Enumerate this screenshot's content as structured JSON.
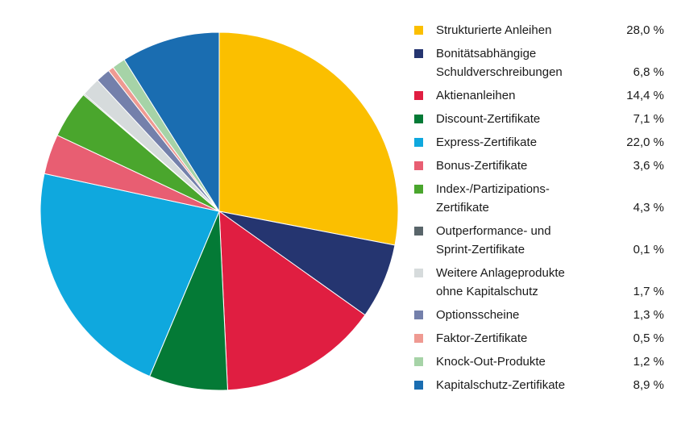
{
  "chart_data": {
    "type": "pie",
    "title": "",
    "start_angle_deg": 0,
    "direction": "clockwise",
    "slices": [
      {
        "label": "Strukturierte Anleihen",
        "label_lines": [
          "Strukturierte Anleihen"
        ],
        "value": 28.0,
        "display": "28,0 %",
        "color": "#fbbf00"
      },
      {
        "label": "Bonitätsabhängige Schuldverschreibungen",
        "label_lines": [
          "Bonitätsabhängige",
          "Schuldverschreibungen"
        ],
        "value": 6.8,
        "display": "6,8 %",
        "color": "#253570"
      },
      {
        "label": "Aktienanleihen",
        "label_lines": [
          "Aktienanleihen"
        ],
        "value": 14.4,
        "display": "14,4 %",
        "color": "#e01e41"
      },
      {
        "label": "Discount-Zertifikate",
        "label_lines": [
          "Discount-Zertifikate"
        ],
        "value": 7.1,
        "display": "7,1 %",
        "color": "#047a36"
      },
      {
        "label": "Express-Zertifikate",
        "label_lines": [
          "Express-Zertifikate"
        ],
        "value": 22.0,
        "display": "22,0 %",
        "color": "#0fa8de"
      },
      {
        "label": "Bonus-Zertifikate",
        "label_lines": [
          "Bonus-Zertifikate"
        ],
        "value": 3.6,
        "display": "3,6 %",
        "color": "#e85e72"
      },
      {
        "label": "Index-/Partizipations-Zertifikate",
        "label_lines": [
          "Index-/Partizipations-",
          "Zertifikate"
        ],
        "value": 4.3,
        "display": "4,3 %",
        "color": "#4aa62d"
      },
      {
        "label": "Outperformance- und Sprint-Zertifikate",
        "label_lines": [
          "Outperformance- und",
          "Sprint-Zertifikate"
        ],
        "value": 0.1,
        "display": "0,1 %",
        "color": "#59656a"
      },
      {
        "label": "Weitere Anlageprodukte ohne Kapitalschutz",
        "label_lines": [
          "Weitere Anlageprodukte",
          "ohne Kapitalschutz"
        ],
        "value": 1.7,
        "display": "1,7 %",
        "color": "#d6dbdc"
      },
      {
        "label": "Optionsscheine",
        "label_lines": [
          "Optionsscheine"
        ],
        "value": 1.3,
        "display": "1,3 %",
        "color": "#7480ab"
      },
      {
        "label": "Faktor-Zertifikate",
        "label_lines": [
          "Faktor-Zertifikate"
        ],
        "value": 0.5,
        "display": "0,5 %",
        "color": "#ef9a92"
      },
      {
        "label": "Knock-Out-Produkte",
        "label_lines": [
          "Knock-Out-Produkte"
        ],
        "value": 1.2,
        "display": "1,2 %",
        "color": "#a6d3a7"
      },
      {
        "label": "Kapitalschutz-Zertifikate",
        "label_lines": [
          "Kapitalschutz-Zertifikate"
        ],
        "value": 8.9,
        "display": "8,9 %",
        "color": "#1a6db1"
      }
    ]
  }
}
